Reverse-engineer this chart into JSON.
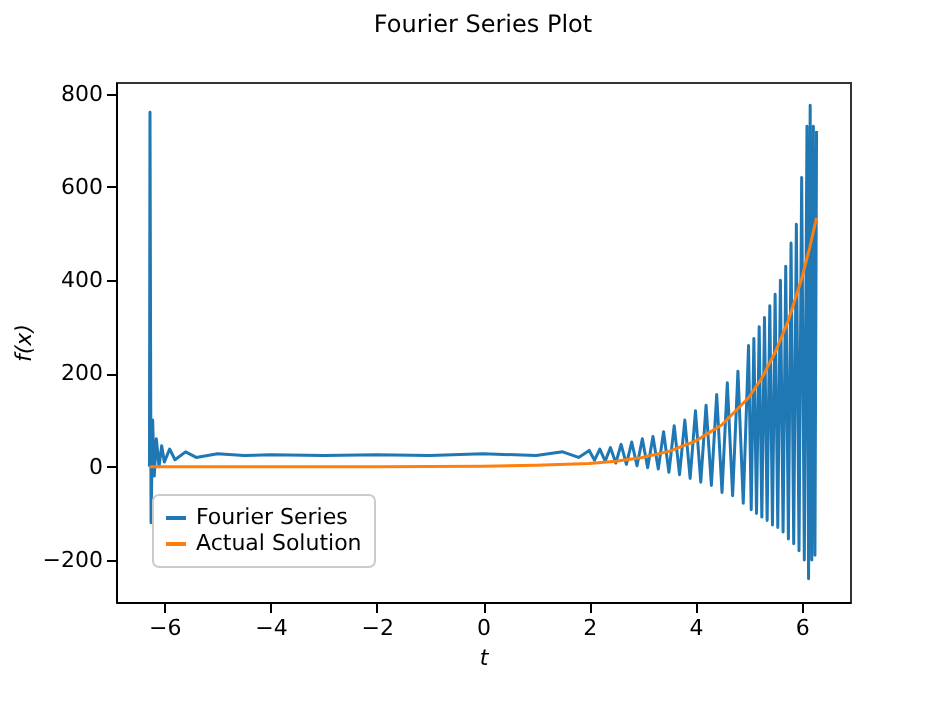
{
  "chart_data": {
    "type": "line",
    "title": "Fourier Series Plot",
    "xlabel": "t",
    "ylabel": "f(x)",
    "xlim": [
      -6.91,
      6.91
    ],
    "ylim": [
      -290,
      825
    ],
    "xticks": [
      -6,
      -4,
      -2,
      0,
      2,
      4,
      6
    ],
    "yticks": [
      -200,
      0,
      200,
      400,
      600,
      800
    ],
    "grid": false,
    "legend": "bottom left",
    "marker": "none",
    "line_style": "solid",
    "series": [
      {
        "name": "Fourier Series",
        "color": "#1f77b4",
        "x": [
          -6.28,
          -6.27,
          -6.25,
          -6.22,
          -6.19,
          -6.15,
          -6.1,
          -6.05,
          -6.0,
          -5.9,
          -5.8,
          -5.6,
          -5.4,
          -5.0,
          -4.5,
          -4,
          -3,
          -2,
          -1,
          0,
          1,
          1.5,
          1.8,
          2.0,
          2.1,
          2.2,
          2.3,
          2.4,
          2.5,
          2.6,
          2.7,
          2.8,
          2.9,
          3.0,
          3.1,
          3.2,
          3.3,
          3.4,
          3.5,
          3.6,
          3.7,
          3.8,
          3.9,
          4.0,
          4.1,
          4.2,
          4.3,
          4.4,
          4.5,
          4.6,
          4.7,
          4.8,
          4.9,
          5.0,
          5.05,
          5.1,
          5.15,
          5.2,
          5.25,
          5.3,
          5.35,
          5.4,
          5.45,
          5.5,
          5.55,
          5.6,
          5.65,
          5.7,
          5.75,
          5.8,
          5.85,
          5.9,
          5.95,
          6.0,
          6.05,
          6.1,
          6.13,
          6.16,
          6.19,
          6.22,
          6.25,
          6.28
        ],
        "values": [
          0,
          760,
          -120,
          100,
          -20,
          60,
          0,
          45,
          10,
          38,
          15,
          32,
          20,
          28,
          24,
          26,
          24,
          26,
          24,
          28,
          24,
          32,
          20,
          35,
          14,
          38,
          12,
          41,
          8,
          48,
          5,
          53,
          2,
          60,
          -2,
          65,
          -5,
          75,
          -12,
          88,
          -17,
          100,
          -25,
          120,
          -33,
          132,
          -40,
          155,
          -55,
          180,
          -62,
          205,
          -78,
          260,
          -92,
          275,
          -100,
          300,
          -108,
          320,
          -115,
          345,
          -125,
          370,
          -130,
          400,
          -140,
          430,
          -155,
          480,
          -165,
          520,
          -180,
          620,
          -200,
          730,
          -240,
          775,
          -200,
          730,
          -190,
          720
        ]
      },
      {
        "name": "Actual Solution",
        "color": "#ff7f0e",
        "x": [
          -6.28,
          -4,
          -2,
          0,
          1,
          2,
          2.5,
          3,
          3.5,
          4,
          4.5,
          5,
          5.25,
          5.5,
          5.75,
          6,
          6.15,
          6.28
        ],
        "values": [
          0,
          0,
          0,
          1,
          3,
          7,
          12,
          20,
          33,
          55,
          90,
          148,
          190,
          245,
          314,
          403,
          469,
          534
        ]
      }
    ]
  }
}
